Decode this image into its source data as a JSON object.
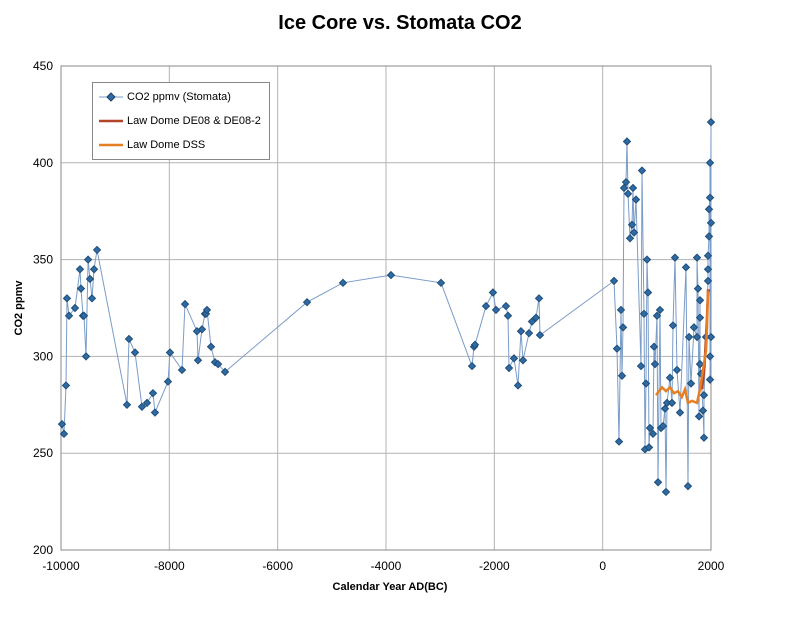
{
  "chart_data": {
    "type": "line",
    "title": "Ice Core vs. Stomata CO2",
    "xlabel": "Calendar Year AD(BC)",
    "ylabel": "CO2 ppmv",
    "xlim": [
      -10000,
      2000
    ],
    "ylim": [
      200,
      450
    ],
    "xticks": [
      -10000,
      -8000,
      -6000,
      -4000,
      -2000,
      0,
      2000
    ],
    "yticks": [
      200,
      250,
      300,
      350,
      400,
      450
    ],
    "grid": true,
    "legend_position": "top-left",
    "series": [
      {
        "name": "CO2 ppmv (Stomata)",
        "color": "#7a9cc8",
        "marker_color": "#1f4e79",
        "marker": "diamond",
        "x": [
          -9982,
          -9945,
          -9908,
          -9890,
          -9852,
          -9742,
          -9650,
          -9631,
          -9594,
          -9576,
          -9538,
          -9500,
          -9465,
          -9428,
          -9390,
          -9335,
          -8782,
          -8745,
          -8634,
          -8505,
          -8412,
          -8302,
          -8265,
          -8025,
          -7988,
          -7766,
          -7710,
          -7490,
          -7471,
          -7397,
          -7342,
          -7323,
          -7305,
          -7230,
          -7157,
          -7100,
          -6972,
          -5458,
          -4794,
          -3908,
          -2985,
          -2412,
          -2375,
          -2357,
          -2154,
          -2025,
          -1969,
          -1785,
          -1748,
          -1729,
          -1637,
          -1563,
          -1508,
          -1471,
          -1360,
          -1305,
          -1231,
          -1175,
          -1157,
          209,
          264,
          302,
          338,
          357,
          376,
          394,
          431,
          449,
          468,
          505,
          542,
          560,
          579,
          616,
          708,
          726,
          763,
          782,
          800,
          819,
          837,
          856,
          874,
          929,
          948,
          966,
          1003,
          1022,
          1058,
          1077,
          1114,
          1151,
          1169,
          1188,
          1243,
          1280,
          1298,
          1335,
          1372,
          1428,
          1538,
          1575,
          1594,
          1631,
          1686,
          1742,
          1742,
          1760,
          1779,
          1797,
          1797,
          1797,
          1815,
          1852,
          1870,
          1870,
          1907,
          1945,
          1945,
          1945,
          1963,
          1963,
          1982,
          1982,
          1982,
          2000,
          2000,
          1982,
          2000
        ],
        "y": [
          265,
          260,
          285,
          330,
          321,
          325,
          345,
          335,
          321,
          321,
          300,
          350,
          340,
          330,
          345,
          355,
          275,
          309,
          302,
          274,
          276,
          281,
          271,
          287,
          302,
          293,
          327,
          313,
          298,
          314,
          322,
          322,
          324,
          305,
          297,
          296,
          292,
          328,
          338,
          342,
          338,
          295,
          305,
          306,
          326,
          333,
          324,
          326,
          321,
          294,
          299,
          285,
          313,
          298,
          312,
          318,
          320,
          330,
          311,
          339,
          304,
          256,
          324,
          290,
          315,
          387,
          390,
          411,
          384,
          361,
          368,
          387,
          364,
          381,
          295,
          396,
          322,
          252,
          286,
          350,
          333,
          253,
          263,
          260,
          305,
          296,
          321,
          235,
          324,
          263,
          264,
          273,
          230,
          276,
          289,
          276,
          316,
          351,
          293,
          271,
          346,
          233,
          310,
          286,
          315,
          310,
          351,
          335,
          269,
          329,
          320,
          296,
          291,
          272,
          258,
          280,
          310,
          339,
          345,
          352,
          362,
          376,
          382,
          400,
          300,
          421,
          369,
          288,
          310
        ]
      },
      {
        "name": "Law Dome DE08 & DE08-2",
        "color": "#b0452a",
        "x": [
          1834,
          1880,
          1926,
          1945,
          1982
        ],
        "y": [
          283,
          295,
          320,
          334,
          334
        ]
      },
      {
        "name": "Law Dome DSS",
        "color": "#e67e22",
        "x": [
          985,
          1095,
          1170,
          1243,
          1317,
          1391,
          1460,
          1520,
          1575,
          1649,
          1742,
          1797,
          1852,
          1907,
          1926,
          1945
        ],
        "y": [
          280,
          284,
          282,
          284,
          281,
          282,
          279,
          283,
          276,
          277,
          276,
          283,
          293,
          303,
          315,
          334
        ]
      }
    ]
  }
}
